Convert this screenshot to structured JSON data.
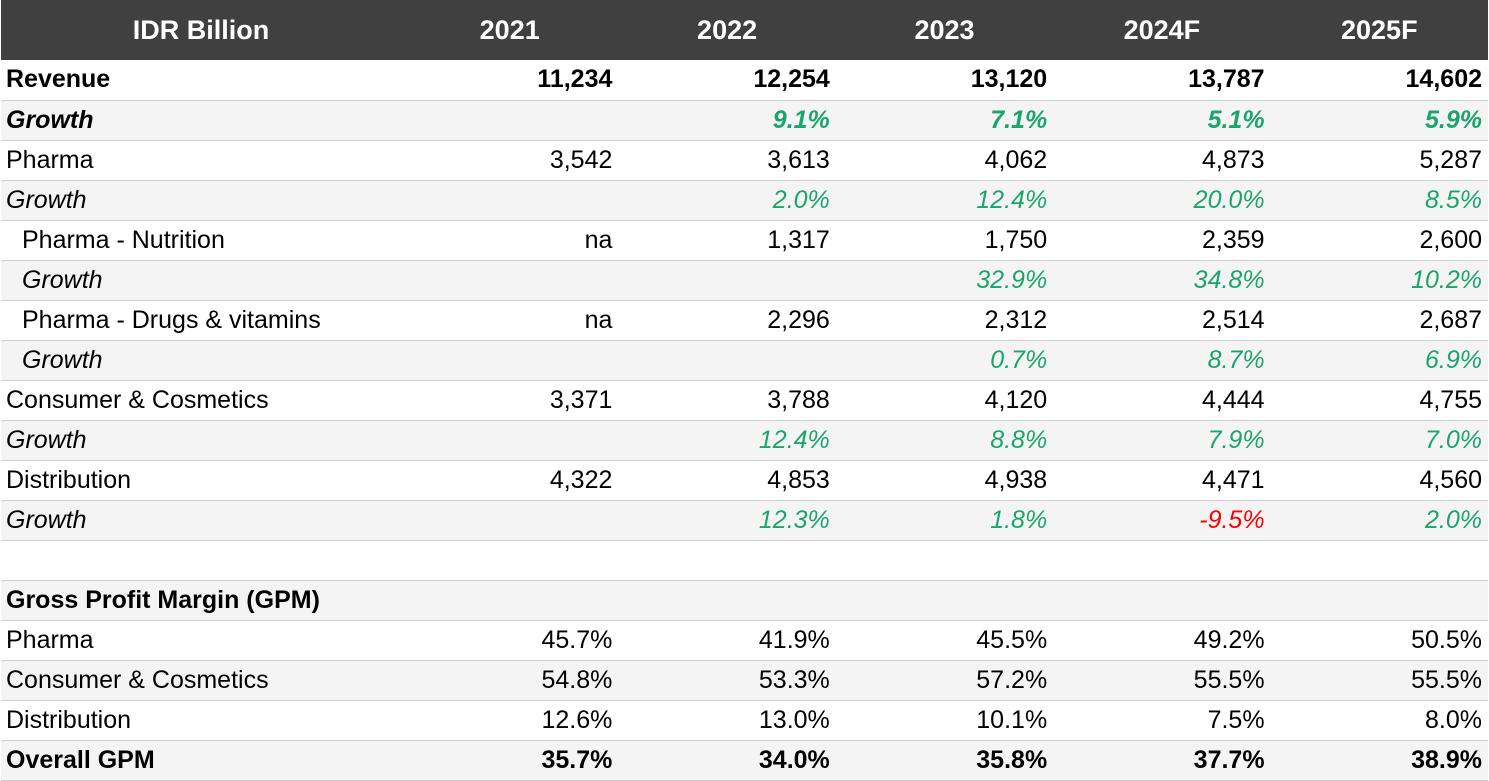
{
  "header": {
    "label": "IDR Billion",
    "years": [
      "2021",
      "2022",
      "2023",
      "2024F",
      "2025F"
    ]
  },
  "rows": [
    {
      "label": "Revenue",
      "values": [
        "11,234",
        "12,254",
        "13,120",
        "13,787",
        "14,602"
      ]
    },
    {
      "label": "Growth",
      "values": [
        "",
        "9.1%",
        "7.1%",
        "5.1%",
        "5.9%"
      ]
    },
    {
      "label": "Pharma",
      "values": [
        "3,542",
        "3,613",
        "4,062",
        "4,873",
        "5,287"
      ]
    },
    {
      "label": "Growth",
      "values": [
        "",
        "2.0%",
        "12.4%",
        "20.0%",
        "8.5%"
      ]
    },
    {
      "label": "Pharma - Nutrition",
      "values": [
        "na",
        "1,317",
        "1,750",
        "2,359",
        "2,600"
      ]
    },
    {
      "label": "Growth",
      "values": [
        "",
        "",
        "32.9%",
        "34.8%",
        "10.2%"
      ]
    },
    {
      "label": "Pharma - Drugs & vitamins",
      "values": [
        "na",
        "2,296",
        "2,312",
        "2,514",
        "2,687"
      ]
    },
    {
      "label": "Growth",
      "values": [
        "",
        "",
        "0.7%",
        "8.7%",
        "6.9%"
      ]
    },
    {
      "label": "Consumer & Cosmetics",
      "values": [
        "3,371",
        "3,788",
        "4,120",
        "4,444",
        "4,755"
      ]
    },
    {
      "label": "Growth",
      "values": [
        "",
        "12.4%",
        "8.8%",
        "7.9%",
        "7.0%"
      ]
    },
    {
      "label": "Distribution",
      "values": [
        "4,322",
        "4,853",
        "4,938",
        "4,471",
        "4,560"
      ]
    },
    {
      "label": "Growth",
      "values": [
        "",
        "12.3%",
        "1.8%",
        "-9.5%",
        "2.0%"
      ]
    },
    {
      "label": "",
      "values": [
        "",
        "",
        "",
        "",
        ""
      ]
    },
    {
      "label": "Gross Profit Margin (GPM)",
      "values": [
        "",
        "",
        "",
        "",
        ""
      ]
    },
    {
      "label": "Pharma",
      "values": [
        "45.7%",
        "41.9%",
        "45.5%",
        "49.2%",
        "50.5%"
      ]
    },
    {
      "label": "Consumer & Cosmetics",
      "values": [
        "54.8%",
        "53.3%",
        "57.2%",
        "55.5%",
        "55.5%"
      ]
    },
    {
      "label": "Distribution",
      "values": [
        "12.6%",
        "13.0%",
        "10.1%",
        "7.5%",
        "8.0%"
      ]
    },
    {
      "label": "Overall GPM",
      "values": [
        "35.7%",
        "34.0%",
        "35.8%",
        "37.7%",
        "38.9%"
      ]
    }
  ],
  "colors": {
    "header_bg": "#404040",
    "positive_growth": "#1aa56a",
    "negative_growth": "#ff0000",
    "alt_row_bg": "#f4f4f4"
  }
}
